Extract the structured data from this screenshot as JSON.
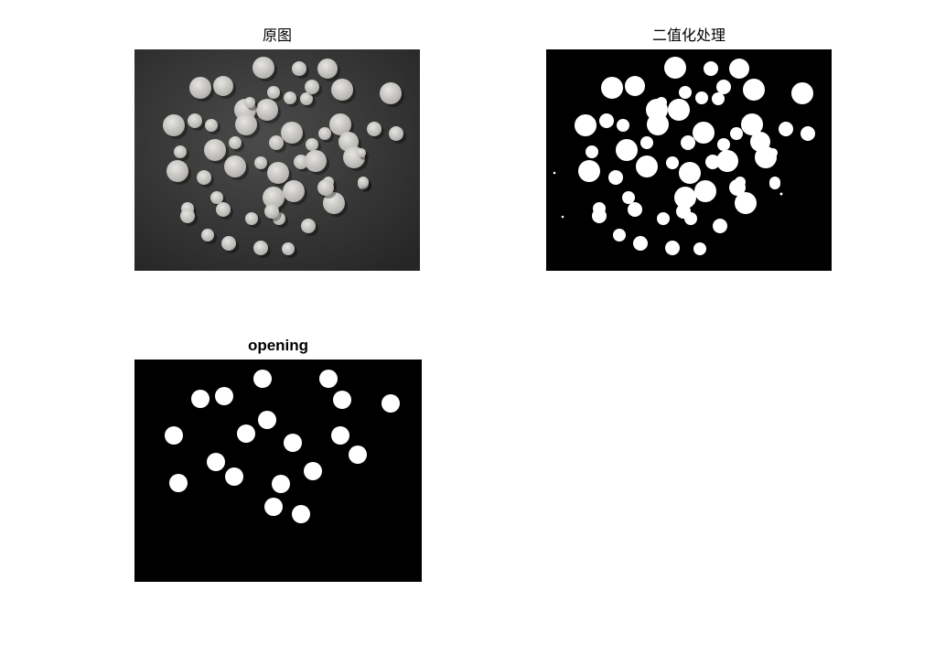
{
  "figure": {
    "panels": [
      {
        "title": "原图",
        "image": "grayscale photo of coins on dark textured background"
      },
      {
        "title": "二值化处理",
        "image": "binary thresholded image: white blobs on black"
      },
      {
        "title": "opening",
        "image": "morphological opening result: fewer white blobs on black"
      }
    ]
  },
  "colors": {
    "background": "#ffffff",
    "foreground": "#ffffff",
    "binary_bg": "#000000",
    "photo_bg": "#3a3a3a",
    "coin": "#d2d0cc"
  }
}
